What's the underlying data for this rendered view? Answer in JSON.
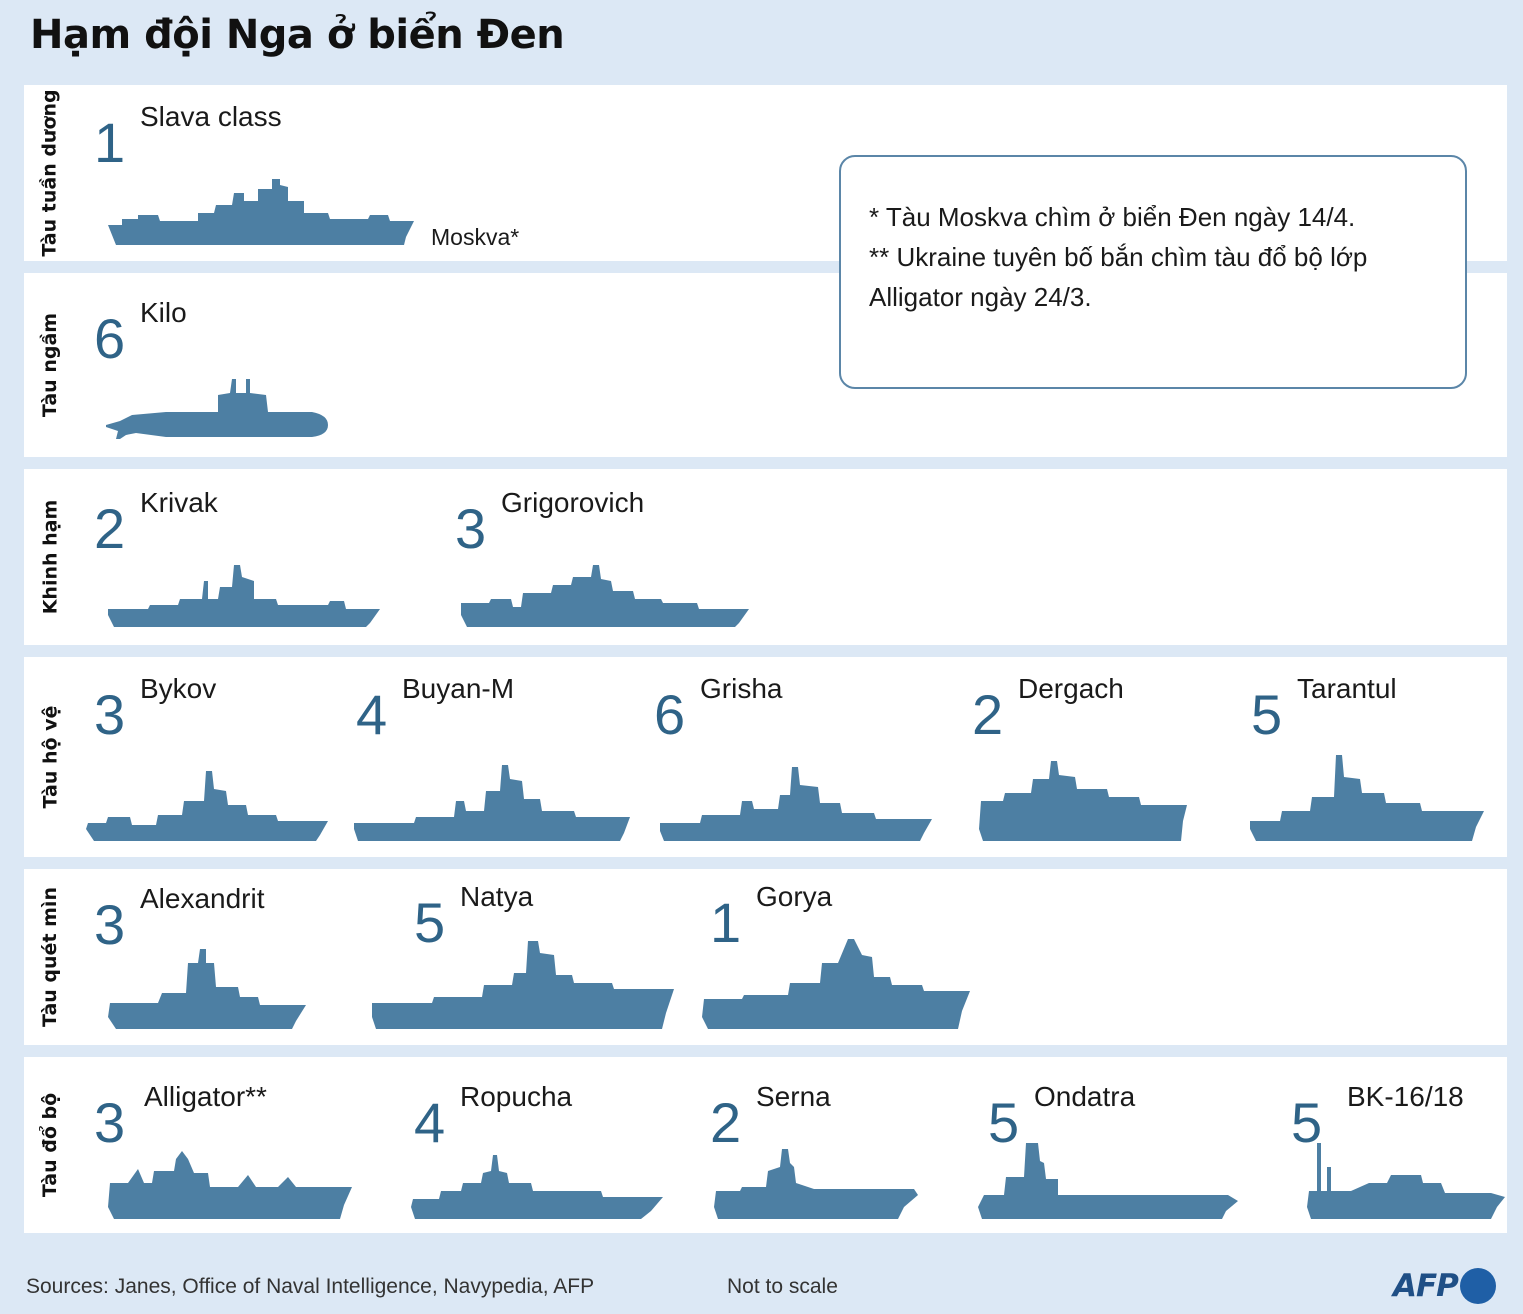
{
  "title": "Hạm đội Nga ở biển Đen",
  "colors": {
    "ship": "#4d7fa3",
    "count": "#2f6387",
    "background": "#dce8f5",
    "panel": "#ffffff"
  },
  "categories": [
    {
      "label": "Tàu tuần dương",
      "ships": [
        {
          "count": "1",
          "name": "Slava class",
          "note": "Moskva*"
        }
      ]
    },
    {
      "label": "Tàu ngầm",
      "ships": [
        {
          "count": "6",
          "name": "Kilo"
        }
      ]
    },
    {
      "label": "Khinh hạm",
      "ships": [
        {
          "count": "2",
          "name": "Krivak"
        },
        {
          "count": "3",
          "name": "Grigorovich"
        }
      ]
    },
    {
      "label": "Tàu hộ vệ",
      "ships": [
        {
          "count": "3",
          "name": "Bykov"
        },
        {
          "count": "4",
          "name": "Buyan-M"
        },
        {
          "count": "6",
          "name": "Grisha"
        },
        {
          "count": "2",
          "name": "Dergach"
        },
        {
          "count": "5",
          "name": "Tarantul"
        }
      ]
    },
    {
      "label": "Tàu quét mìn",
      "ships": [
        {
          "count": "3",
          "name": "Alexandrit"
        },
        {
          "count": "5",
          "name": "Natya"
        },
        {
          "count": "1",
          "name": "Gorya"
        }
      ]
    },
    {
      "label": "Tàu đổ bộ",
      "ships": [
        {
          "count": "3",
          "name": "Alligator**"
        },
        {
          "count": "4",
          "name": "Ropucha"
        },
        {
          "count": "2",
          "name": "Serna"
        },
        {
          "count": "5",
          "name": "Ondatra"
        },
        {
          "count": "5",
          "name": "BK-16/18"
        }
      ]
    }
  ],
  "notes": [
    "* Tàu Moskva chìm ở biển Đen ngày 14/4.",
    "** Ukraine tuyên bố bắn chìm tàu đổ bộ lớp",
    "Alligator ngày 24/3."
  ],
  "footer": {
    "sources": "Sources: Janes, Office of Naval Intelligence, Navypedia, AFP",
    "scale": "Not to scale",
    "logo": "AFP"
  }
}
